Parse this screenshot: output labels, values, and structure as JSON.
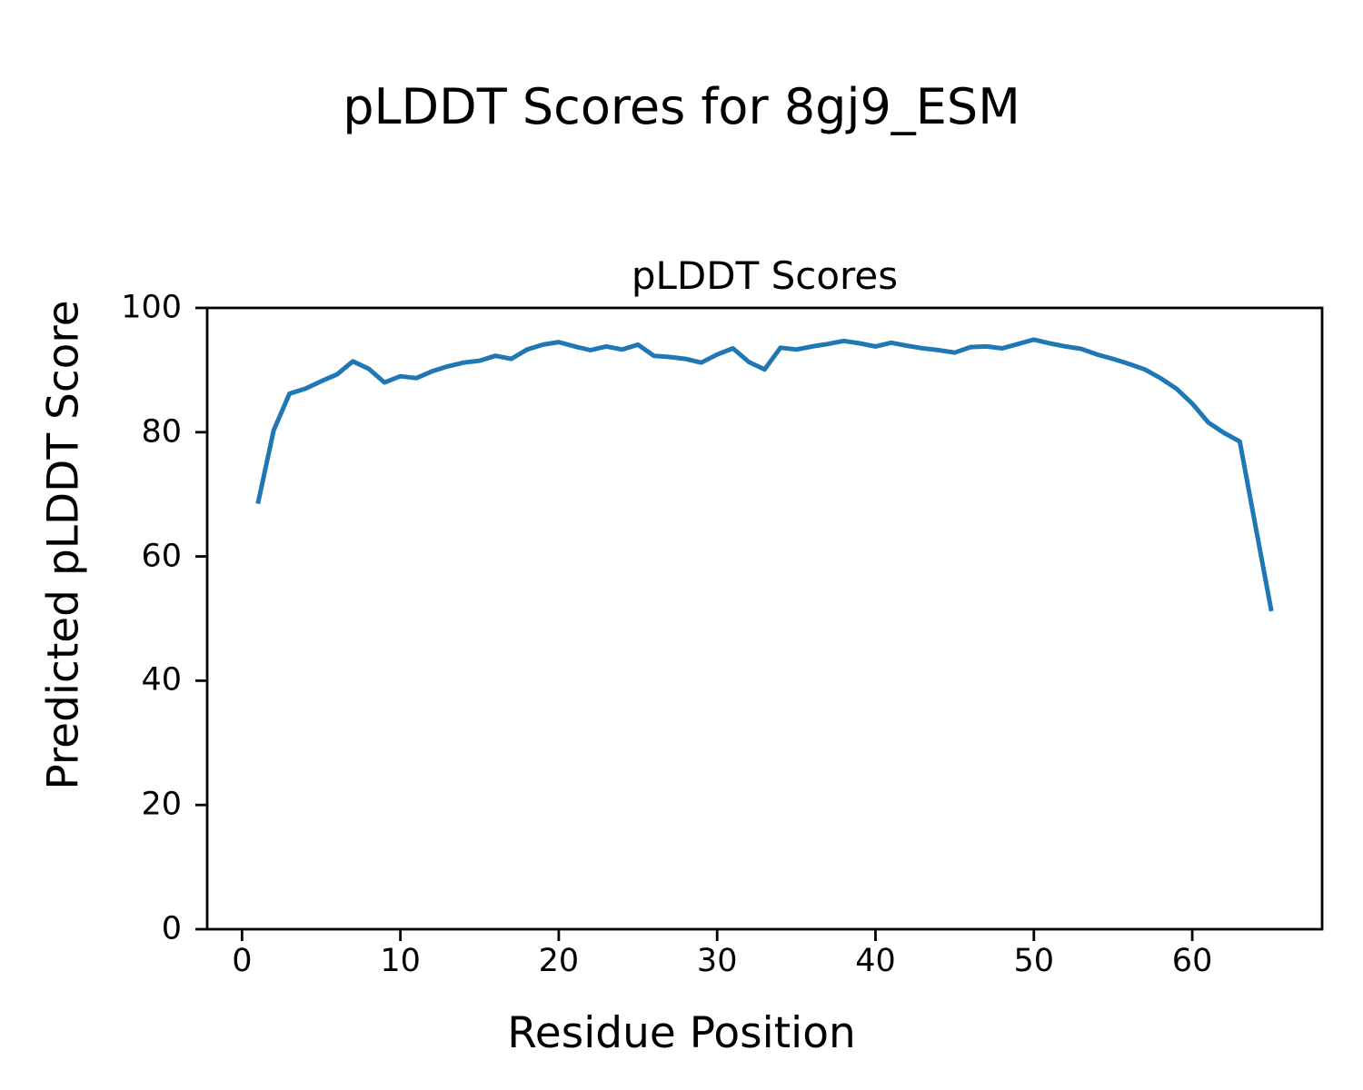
{
  "figure": {
    "suptitle": "pLDDT Scores for 8gj9_ESM",
    "background_color": "#ffffff",
    "text_color": "#000000"
  },
  "chart_data": {
    "type": "line",
    "title": "pLDDT Scores",
    "xlabel": "Residue Position",
    "ylabel": "Predicted pLDDT Score",
    "line_color": "#1f77b4",
    "grid": false,
    "legend": "none",
    "xlim": [
      -2.2,
      68.2
    ],
    "ylim": [
      0,
      100
    ],
    "xticks": [
      0,
      10,
      20,
      30,
      40,
      50,
      60
    ],
    "yticks": [
      0,
      20,
      40,
      60,
      80,
      100
    ],
    "x": [
      1,
      2,
      3,
      4,
      5,
      6,
      7,
      8,
      9,
      10,
      11,
      12,
      13,
      14,
      15,
      16,
      17,
      18,
      19,
      20,
      21,
      22,
      23,
      24,
      25,
      26,
      27,
      28,
      29,
      30,
      31,
      32,
      33,
      34,
      35,
      36,
      37,
      38,
      39,
      40,
      41,
      42,
      43,
      44,
      45,
      46,
      47,
      48,
      49,
      50,
      51,
      52,
      53,
      54,
      55,
      56,
      57,
      58,
      59,
      60,
      61,
      62,
      63,
      64,
      65
    ],
    "y": [
      68.5,
      80.3,
      86.2,
      87.0,
      88.2,
      89.3,
      91.4,
      90.2,
      88.0,
      89.0,
      88.7,
      89.8,
      90.6,
      91.2,
      91.5,
      92.3,
      91.8,
      93.3,
      94.1,
      94.5,
      93.8,
      93.2,
      93.8,
      93.3,
      94.1,
      92.3,
      92.1,
      91.8,
      91.2,
      92.5,
      93.5,
      91.3,
      90.1,
      93.6,
      93.3,
      93.8,
      94.2,
      94.7,
      94.3,
      93.8,
      94.4,
      93.9,
      93.5,
      93.2,
      92.8,
      93.7,
      93.8,
      93.5,
      94.2,
      94.9,
      94.3,
      93.8,
      93.4,
      92.5,
      91.8,
      91.0,
      90.1,
      88.7,
      87.0,
      84.6,
      81.6,
      79.9,
      78.5,
      64.8,
      51.2
    ]
  }
}
